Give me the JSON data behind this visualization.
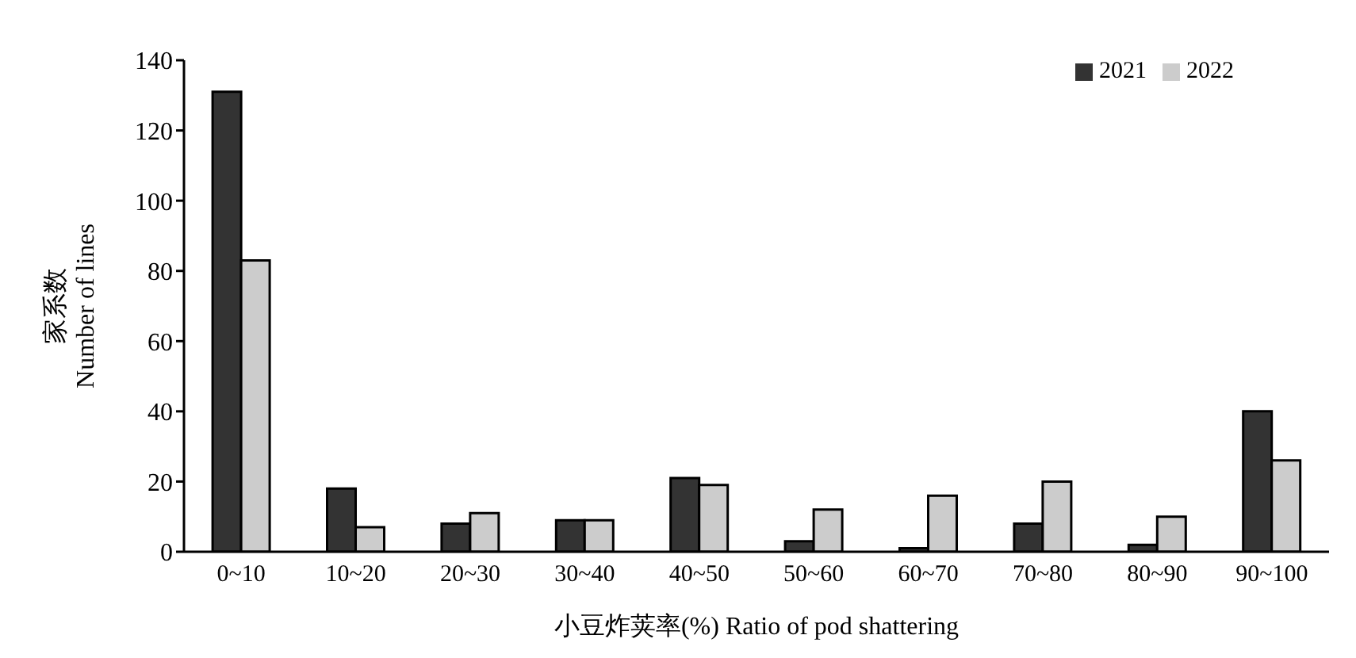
{
  "chart_data": {
    "type": "bar",
    "xlabel": "小豆炸荚率(%) Ratio of pod shattering",
    "ylabel": "家系数\nNumber of lines",
    "categories": [
      "0~10",
      "10~20",
      "20~30",
      "30~40",
      "40~50",
      "50~60",
      "60~70",
      "70~80",
      "80~90",
      "90~100"
    ],
    "series": [
      {
        "name": "2021",
        "color": "#333333",
        "values": [
          131,
          18,
          8,
          9,
          21,
          3,
          1,
          8,
          2,
          40
        ]
      },
      {
        "name": "2022",
        "color": "#cccccc",
        "values": [
          83,
          7,
          11,
          9,
          19,
          12,
          16,
          20,
          10,
          26
        ]
      }
    ],
    "ylim": [
      0,
      140
    ],
    "yticks": [
      0,
      20,
      40,
      60,
      80,
      100,
      120,
      140
    ],
    "grid": false,
    "legend": "top right"
  }
}
